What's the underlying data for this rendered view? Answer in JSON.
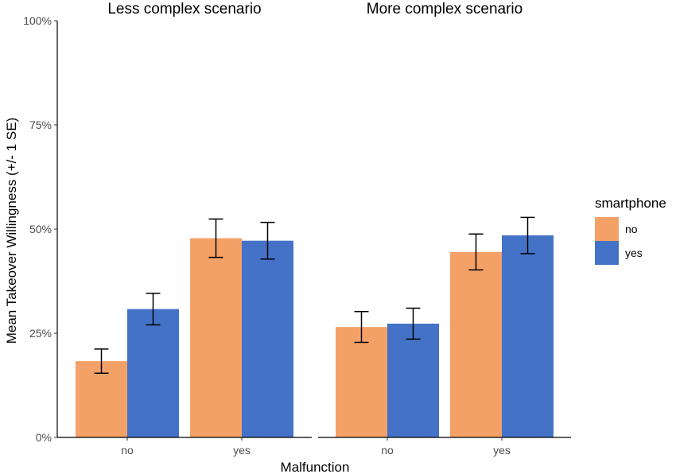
{
  "chart_data": {
    "type": "bar",
    "ylabel": "Mean Takeover Willingness (+/- 1 SE)",
    "xlabel": "Malfunction",
    "ylim": [
      0,
      100
    ],
    "y_ticks": [
      "0%",
      "25%",
      "50%",
      "75%",
      "100%"
    ],
    "y_tick_values": [
      0,
      25,
      50,
      75,
      100
    ],
    "categories": [
      "no",
      "yes"
    ],
    "grid": false,
    "legend": {
      "title": "smartphone",
      "placement": "right",
      "entries": [
        {
          "name": "no",
          "color": "#F4A168"
        },
        {
          "name": "yes",
          "color": "#4472C7"
        }
      ]
    },
    "facets": [
      {
        "title": "Less complex scenario",
        "series": [
          {
            "name": "no",
            "values": [
              18.3,
              47.8
            ],
            "se_low": [
              15.4,
              43.2
            ],
            "se_high": [
              21.2,
              52.4
            ]
          },
          {
            "name": "yes",
            "values": [
              30.8,
              47.2
            ],
            "se_low": [
              27.0,
              42.8
            ],
            "se_high": [
              34.6,
              51.6
            ]
          }
        ]
      },
      {
        "title": "More complex scenario",
        "series": [
          {
            "name": "no",
            "values": [
              26.5,
              44.5
            ],
            "se_low": [
              22.8,
              40.2
            ],
            "se_high": [
              30.2,
              48.8
            ]
          },
          {
            "name": "yes",
            "values": [
              27.3,
              48.5
            ],
            "se_low": [
              23.6,
              44.1
            ],
            "se_high": [
              31.0,
              52.8
            ]
          }
        ]
      }
    ]
  }
}
